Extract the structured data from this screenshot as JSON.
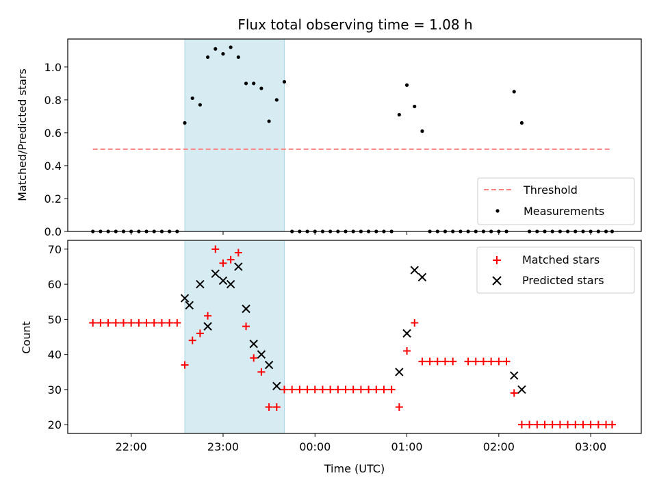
{
  "title": "Flux total observing time = 1.08 h",
  "colors": {
    "shade": "#add8e6",
    "threshold": "#ff7f7f",
    "matched": "#ff0000",
    "predicted": "#000000",
    "measure": "#000000"
  },
  "chart_data": [
    {
      "type": "scatter",
      "ylabel": "Matched/Predicted stars",
      "ylim": [
        0,
        1.17
      ],
      "yticks": [
        "0.0",
        "0.2",
        "0.4",
        "0.6",
        "0.8",
        "1.0"
      ],
      "ytick_values": [
        0,
        0.2,
        0.4,
        0.6,
        0.8,
        1.0
      ],
      "shaded_interval": {
        "start": "22:35",
        "end": "23:40"
      },
      "legend": {
        "position": "lower-right",
        "entries": [
          "Threshold",
          "Measurements"
        ]
      },
      "threshold": {
        "name": "Threshold",
        "value": 0.5,
        "x_start": "21:35",
        "x_end": "03:14"
      },
      "series": [
        {
          "name": "Measurements",
          "x": [
            "21:35",
            "21:40",
            "21:45",
            "21:50",
            "21:55",
            "22:00",
            "22:05",
            "22:10",
            "22:15",
            "22:20",
            "22:25",
            "22:30",
            "22:35",
            "22:40",
            "22:45",
            "22:50",
            "22:55",
            "23:00",
            "23:05",
            "23:10",
            "23:15",
            "23:20",
            "23:25",
            "23:30",
            "23:35",
            "23:40",
            "23:45",
            "23:50",
            "23:55",
            "00:00",
            "00:05",
            "00:10",
            "00:15",
            "00:20",
            "00:25",
            "00:30",
            "00:35",
            "00:40",
            "00:45",
            "00:50",
            "00:55",
            "01:00",
            "01:05",
            "01:10",
            "01:15",
            "01:20",
            "01:25",
            "01:30",
            "01:35",
            "01:40",
            "01:45",
            "01:50",
            "01:55",
            "02:00",
            "02:05",
            "02:10",
            "02:15",
            "02:20",
            "02:25",
            "02:30",
            "02:35",
            "02:40",
            "02:45",
            "02:50",
            "02:55",
            "03:00",
            "03:05",
            "03:10",
            "03:14"
          ],
          "y": [
            0,
            0,
            0,
            0,
            0,
            0,
            0,
            0,
            0,
            0,
            0,
            0,
            0.66,
            0.81,
            0.77,
            1.06,
            1.11,
            1.08,
            1.12,
            1.06,
            0.9,
            0.9,
            0.87,
            0.67,
            0.8,
            0.91,
            0,
            0,
            0,
            0,
            0,
            0,
            0,
            0,
            0,
            0,
            0,
            0,
            0,
            0,
            0.71,
            0.89,
            0.76,
            0.61,
            0,
            0,
            0,
            0,
            0,
            0,
            0,
            0,
            0,
            0,
            0,
            0.85,
            0.66,
            0,
            0,
            0,
            0,
            0,
            0,
            0,
            0,
            0,
            0,
            0,
            0
          ]
        }
      ]
    },
    {
      "type": "scatter",
      "xlabel": "Time (UTC)",
      "ylabel": "Count",
      "ylim": [
        17.5,
        72.5
      ],
      "yticks": [
        "20",
        "30",
        "40",
        "50",
        "60",
        "70"
      ],
      "ytick_values": [
        20,
        30,
        40,
        50,
        60,
        70
      ],
      "xticks": [
        "22:00",
        "23:00",
        "00:00",
        "01:00",
        "02:00",
        "03:00"
      ],
      "xtick_hours": [
        22,
        23,
        24,
        25,
        26,
        27
      ],
      "x_range_hours": [
        21.31,
        27.55
      ],
      "shaded_interval": {
        "start": "22:35",
        "end": "23:40"
      },
      "legend": {
        "position": "upper-right",
        "entries": [
          "Matched stars",
          "Predicted stars"
        ]
      },
      "series": [
        {
          "name": "Matched stars",
          "x": [
            "21:35",
            "21:40",
            "21:45",
            "21:50",
            "21:55",
            "22:00",
            "22:05",
            "22:10",
            "22:15",
            "22:20",
            "22:25",
            "22:30",
            "22:35",
            "22:40",
            "22:45",
            "22:50",
            "22:55",
            "23:00",
            "23:05",
            "23:10",
            "23:15",
            "23:20",
            "23:25",
            "23:30",
            "23:35",
            "23:40",
            "23:45",
            "23:50",
            "23:55",
            "00:00",
            "00:05",
            "00:10",
            "00:15",
            "00:20",
            "00:25",
            "00:30",
            "00:35",
            "00:40",
            "00:45",
            "00:50",
            "00:55",
            "01:00",
            "01:05",
            "01:10",
            "01:15",
            "01:20",
            "01:25",
            "01:30",
            "01:40",
            "01:45",
            "01:50",
            "01:55",
            "02:00",
            "02:05",
            "02:10",
            "02:15",
            "02:20",
            "02:25",
            "02:30",
            "02:35",
            "02:40",
            "02:45",
            "02:50",
            "02:55",
            "03:00",
            "03:05",
            "03:10",
            "03:14"
          ],
          "y": [
            49,
            49,
            49,
            49,
            49,
            49,
            49,
            49,
            49,
            49,
            49,
            49,
            37,
            44,
            46,
            51,
            70,
            66,
            67,
            69,
            48,
            39,
            35,
            25,
            25,
            30,
            30,
            30,
            30,
            30,
            30,
            30,
            30,
            30,
            30,
            30,
            30,
            30,
            30,
            30,
            25,
            41,
            49,
            38,
            38,
            38,
            38,
            38,
            38,
            38,
            38,
            38,
            38,
            38,
            29,
            20,
            20,
            20,
            20,
            20,
            20,
            20,
            20,
            20,
            20,
            20,
            20,
            20
          ]
        },
        {
          "name": "Predicted stars",
          "x": [
            "22:35",
            "22:38",
            "22:45",
            "22:50",
            "22:55",
            "23:00",
            "23:05",
            "23:10",
            "23:15",
            "23:20",
            "23:25",
            "23:30",
            "23:35",
            "00:55",
            "01:00",
            "01:05",
            "01:10",
            "02:10",
            "02:15"
          ],
          "y": [
            56,
            54,
            60,
            48,
            63,
            61,
            60,
            65,
            53,
            43,
            40,
            37,
            31,
            35,
            46,
            64,
            62,
            34,
            30
          ]
        }
      ]
    }
  ]
}
